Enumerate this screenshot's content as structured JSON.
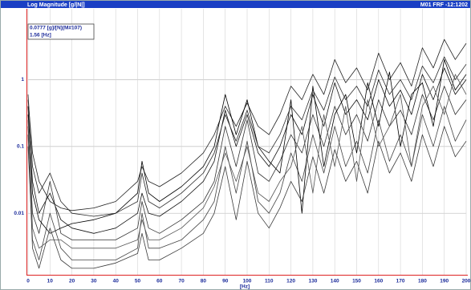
{
  "chart_data": {
    "type": "line",
    "title": "Log Magnitude [g/|N|]",
    "subtitle": "M01 FRF -12:1202",
    "xlabel": "[Hz]",
    "annotation": [
      "0.0777 [g]/[N](M#107)",
      "1.56 [Hz]"
    ],
    "log_y": true,
    "grid": true,
    "x": [
      0,
      2,
      5,
      10,
      15,
      20,
      30,
      40,
      50,
      52,
      55,
      60,
      70,
      80,
      85,
      90,
      95,
      100,
      105,
      110,
      115,
      120,
      125,
      130,
      135,
      140,
      145,
      150,
      155,
      160,
      165,
      170,
      175,
      180,
      185,
      190,
      195,
      200
    ],
    "xlim": [
      0,
      200
    ],
    "xticks": [
      0,
      10,
      20,
      30,
      40,
      50,
      60,
      70,
      80,
      90,
      100,
      110,
      120,
      130,
      140,
      150,
      160,
      170,
      180,
      190,
      200
    ],
    "ylim": [
      0.0012,
      11.5
    ],
    "yticks": [
      0.01,
      0.1,
      1
    ],
    "series": [
      {
        "color": "#222222",
        "values": [
          0.5,
          0.08,
          0.03,
          0.015,
          0.012,
          0.011,
          0.012,
          0.015,
          0.03,
          0.05,
          0.03,
          0.025,
          0.04,
          0.08,
          0.15,
          0.4,
          0.2,
          0.45,
          0.2,
          0.15,
          0.3,
          0.8,
          0.5,
          1.2,
          0.6,
          2.0,
          0.9,
          1.5,
          0.7,
          2.5,
          1.0,
          1.8,
          0.8,
          3.0,
          1.5,
          4.0,
          2.0,
          3.5
        ]
      },
      {
        "color": "#111111",
        "values": [
          0.3,
          0.03,
          0.01,
          0.02,
          0.008,
          0.006,
          0.005,
          0.006,
          0.01,
          0.02,
          0.01,
          0.009,
          0.015,
          0.03,
          0.06,
          0.35,
          0.1,
          0.3,
          0.08,
          0.05,
          0.1,
          0.3,
          0.15,
          0.6,
          0.2,
          0.9,
          0.3,
          0.5,
          0.25,
          1.0,
          0.4,
          0.7,
          0.3,
          1.2,
          0.5,
          1.5,
          0.6,
          1.0
        ]
      },
      {
        "color": "#333333",
        "values": [
          0.2,
          0.01,
          0.005,
          0.03,
          0.005,
          0.004,
          0.004,
          0.004,
          0.006,
          0.015,
          0.006,
          0.005,
          0.008,
          0.015,
          0.03,
          0.2,
          0.05,
          0.25,
          0.04,
          0.03,
          0.06,
          0.15,
          0.08,
          0.3,
          0.1,
          0.4,
          0.15,
          0.3,
          0.12,
          0.5,
          0.2,
          0.35,
          0.15,
          0.6,
          0.25,
          0.8,
          0.3,
          0.5
        ]
      },
      {
        "color": "#444444",
        "values": [
          0.1,
          0.004,
          0.002,
          0.01,
          0.003,
          0.002,
          0.002,
          0.002,
          0.003,
          0.01,
          0.003,
          0.003,
          0.004,
          0.008,
          0.015,
          0.1,
          0.02,
          0.12,
          0.015,
          0.01,
          0.02,
          0.08,
          0.03,
          0.15,
          0.04,
          0.2,
          0.05,
          0.12,
          0.04,
          0.25,
          0.06,
          0.15,
          0.05,
          0.3,
          0.1,
          0.4,
          0.12,
          0.25
        ]
      },
      {
        "color": "#000000",
        "values": [
          0.4,
          0.02,
          0.008,
          0.005,
          0.006,
          0.007,
          0.008,
          0.01,
          0.02,
          0.06,
          0.02,
          0.015,
          0.025,
          0.05,
          0.1,
          0.6,
          0.15,
          0.5,
          0.1,
          0.06,
          0.04,
          0.5,
          0.01,
          0.8,
          0.05,
          0.3,
          0.6,
          0.08,
          0.9,
          0.2,
          1.3,
          0.1,
          0.6,
          0.9,
          0.2,
          2.0,
          0.7,
          1.2
        ]
      },
      {
        "color": "#555555",
        "values": [
          0.25,
          0.006,
          0.003,
          0.004,
          0.004,
          0.003,
          0.003,
          0.003,
          0.004,
          0.008,
          0.004,
          0.004,
          0.006,
          0.012,
          0.025,
          0.08,
          0.03,
          0.1,
          0.02,
          0.015,
          0.03,
          0.05,
          0.2,
          0.02,
          0.3,
          0.05,
          0.4,
          0.03,
          0.5,
          0.1,
          0.2,
          0.6,
          0.05,
          0.4,
          0.8,
          0.3,
          1.2,
          0.6
        ]
      },
      {
        "color": "#2a2a2a",
        "values": [
          0.6,
          0.05,
          0.02,
          0.04,
          0.015,
          0.01,
          0.009,
          0.01,
          0.015,
          0.04,
          0.015,
          0.012,
          0.02,
          0.04,
          0.08,
          0.3,
          0.12,
          0.35,
          0.1,
          0.08,
          0.15,
          0.4,
          0.25,
          0.7,
          0.35,
          1.1,
          0.5,
          0.8,
          0.4,
          1.4,
          0.6,
          1.0,
          0.5,
          1.6,
          0.9,
          2.2,
          1.0,
          1.7
        ]
      },
      {
        "color": "#3a3a3a",
        "values": [
          0.15,
          0.003,
          0.0015,
          0.006,
          0.002,
          0.0015,
          0.0015,
          0.0018,
          0.0025,
          0.005,
          0.002,
          0.002,
          0.003,
          0.005,
          0.01,
          0.05,
          0.008,
          0.06,
          0.01,
          0.006,
          0.012,
          0.03,
          0.015,
          0.07,
          0.02,
          0.09,
          0.03,
          0.06,
          0.02,
          0.12,
          0.04,
          0.08,
          0.03,
          0.15,
          0.05,
          0.2,
          0.07,
          0.12
        ]
      }
    ]
  }
}
